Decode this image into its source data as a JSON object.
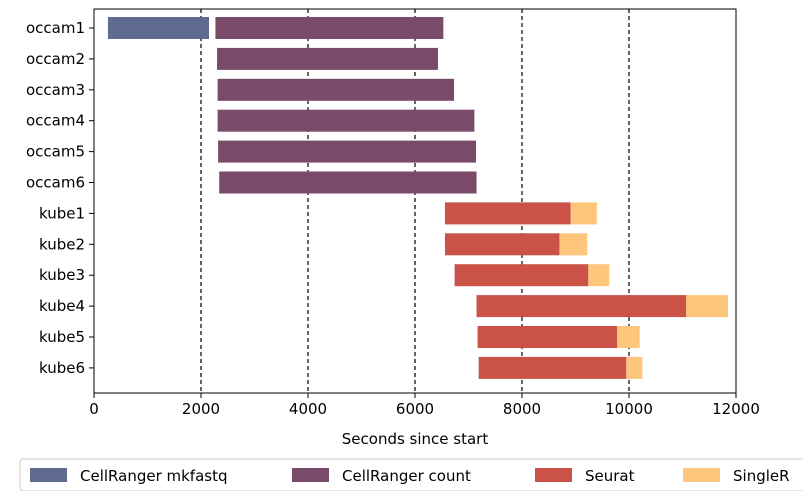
{
  "chart_data": {
    "type": "bar",
    "orientation": "horizontal",
    "stacked": "gantt",
    "xlabel": "Seconds since start",
    "xlim": [
      0,
      12000
    ],
    "xticks": [
      0,
      2000,
      4000,
      6000,
      8000,
      10000,
      12000
    ],
    "xtick_labels": [
      "0",
      "2000",
      "4000",
      "6000",
      "8000",
      "10000",
      "12000"
    ],
    "vlines": [
      2000,
      4000,
      6000,
      8000,
      10000
    ],
    "categories": [
      "occam1",
      "occam2",
      "occam3",
      "occam4",
      "occam5",
      "occam6",
      "kube1",
      "kube2",
      "kube3",
      "kube4",
      "kube5",
      "kube6"
    ],
    "legend_position": "bottom",
    "series": [
      {
        "name": "CellRanger mkfastq",
        "color": "#5f6b8f",
        "segments": [
          {
            "category": "occam1",
            "start": 260,
            "end": 2150
          }
        ]
      },
      {
        "name": "CellRanger count",
        "color": "#7a4a6b",
        "segments": [
          {
            "category": "occam1",
            "start": 2270,
            "end": 6530
          },
          {
            "category": "occam2",
            "start": 2300,
            "end": 6430
          },
          {
            "category": "occam3",
            "start": 2310,
            "end": 6730
          },
          {
            "category": "occam4",
            "start": 2310,
            "end": 7110
          },
          {
            "category": "occam5",
            "start": 2320,
            "end": 7140
          },
          {
            "category": "occam6",
            "start": 2340,
            "end": 7150
          }
        ]
      },
      {
        "name": "Seurat",
        "color": "#cb5246",
        "segments": [
          {
            "category": "kube1",
            "start": 6560,
            "end": 8910
          },
          {
            "category": "kube2",
            "start": 6560,
            "end": 8700
          },
          {
            "category": "kube3",
            "start": 6740,
            "end": 9240
          },
          {
            "category": "kube4",
            "start": 7150,
            "end": 11070
          },
          {
            "category": "kube5",
            "start": 7170,
            "end": 9780
          },
          {
            "category": "kube6",
            "start": 7190,
            "end": 9950
          }
        ]
      },
      {
        "name": "SingleR",
        "color": "#fdc67b",
        "segments": [
          {
            "category": "kube1",
            "start": 8910,
            "end": 9400
          },
          {
            "category": "kube2",
            "start": 8700,
            "end": 9220
          },
          {
            "category": "kube3",
            "start": 9240,
            "end": 9630
          },
          {
            "category": "kube4",
            "start": 11070,
            "end": 11850
          },
          {
            "category": "kube5",
            "start": 9780,
            "end": 10200
          },
          {
            "category": "kube6",
            "start": 9950,
            "end": 10250
          }
        ]
      }
    ]
  }
}
